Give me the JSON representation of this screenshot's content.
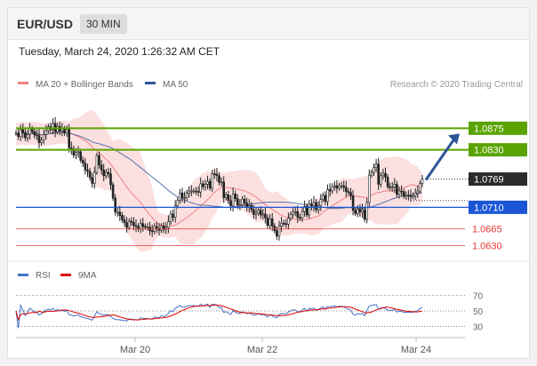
{
  "header": {
    "pair": "EUR/USD",
    "timeframe": "30 MIN"
  },
  "timestamp": "Tuesday, March 24, 2020 1:26:32 AM CET",
  "legend": {
    "ma20": "MA 20 + Bollinger Bands",
    "ma50": "MA 50",
    "copyright": "Research © 2020 Trading Central",
    "ma20_color": "#f08080",
    "ma50_color": "#2f5597"
  },
  "rsi_legend": {
    "rsi": "RSI",
    "ma9": "9MA",
    "rsi_color": "#4472c4",
    "ma9_color": "#e00000"
  },
  "chart_data": {
    "type": "candlestick",
    "instrument": "EUR/USD",
    "interval": "30 MIN",
    "ylim": [
      1.0605,
      1.0935
    ],
    "x_tick_labels": [
      "Mar 20",
      "Mar 22",
      "Mar 24"
    ],
    "levels": [
      {
        "label": "1.0875",
        "value": 1.0875,
        "color": "#5aa300",
        "kind": "resistance"
      },
      {
        "label": "1.0830",
        "value": 1.083,
        "color": "#5aa300",
        "kind": "resistance"
      },
      {
        "label": "1.0769",
        "value": 1.0769,
        "color": "#333333",
        "kind": "last-price"
      },
      {
        "label": "1.0710",
        "value": 1.071,
        "color": "#1a56d6",
        "kind": "pivot"
      },
      {
        "label": "1.0665",
        "value": 1.0665,
        "color": "#e53935",
        "kind": "support"
      },
      {
        "label": "1.0630",
        "value": 1.063,
        "color": "#e53935",
        "kind": "support"
      }
    ],
    "candles_close": [
      1.0865,
      1.0858,
      1.0872,
      1.0866,
      1.0855,
      1.0862,
      1.0874,
      1.0868,
      1.0861,
      1.086,
      1.0845,
      1.085,
      1.0862,
      1.087,
      1.0878,
      1.0872,
      1.0885,
      1.0868,
      1.0879,
      1.0869,
      1.0874,
      1.0865,
      1.0873,
      1.0834,
      1.0832,
      1.0819,
      1.0824,
      1.0826,
      1.0808,
      1.0802,
      1.0788,
      1.0785,
      1.0772,
      1.076,
      1.0783,
      1.0818,
      1.0798,
      1.0788,
      1.0776,
      1.0783,
      1.078,
      1.0757,
      1.0729,
      1.07,
      1.07,
      1.0693,
      1.0684,
      1.0678,
      1.0668,
      1.0681,
      1.0679,
      1.0672,
      1.067,
      1.0665,
      1.0676,
      1.067,
      1.0669,
      1.0669,
      1.0661,
      1.066,
      1.067,
      1.0665,
      1.0662,
      1.0671,
      1.0664,
      1.0668,
      1.068,
      1.0696,
      1.0689,
      1.0713,
      1.0725,
      1.074,
      1.073,
      1.073,
      1.0739,
      1.0744,
      1.0744,
      1.0744,
      1.0743,
      1.0742,
      1.0759,
      1.0753,
      1.0758,
      1.0764,
      1.075,
      1.078,
      1.0779,
      1.0776,
      1.0762,
      1.0763,
      1.073,
      1.0736,
      1.0724,
      1.0713,
      1.0738,
      1.0728,
      1.0715,
      1.0715,
      1.0727,
      1.0719,
      1.0711,
      1.0714,
      1.0705,
      1.0695,
      1.0698,
      1.0704,
      1.0694,
      1.0696,
      1.0688,
      1.0672,
      1.0686,
      1.0671,
      1.0661,
      1.065,
      1.0671,
      1.0677,
      1.0676,
      1.0675,
      1.0687,
      1.0695,
      1.0701,
      1.0701,
      1.0689,
      1.0688,
      1.0701,
      1.0712,
      1.0694,
      1.0717,
      1.0713,
      1.072,
      1.0705,
      1.0713,
      1.0726,
      1.0735,
      1.0722,
      1.0747,
      1.0744,
      1.0753,
      1.0755,
      1.075,
      1.0755,
      1.0755,
      1.0752,
      1.0743,
      1.0741,
      1.0734,
      1.0704,
      1.0697,
      1.0706,
      1.07,
      1.0704,
      1.0685,
      1.072,
      1.0777,
      1.0783,
      1.0793,
      1.08,
      1.0758,
      1.0776,
      1.0781,
      1.0773,
      1.0753,
      1.0752,
      1.0752,
      1.0758,
      1.0737,
      1.0744,
      1.0743,
      1.0733,
      1.0735,
      1.0734,
      1.0733,
      1.0734,
      1.074,
      1.0744,
      1.076,
      1.0769
    ],
    "rsi": {
      "levels": [
        70,
        50,
        30
      ]
    }
  }
}
